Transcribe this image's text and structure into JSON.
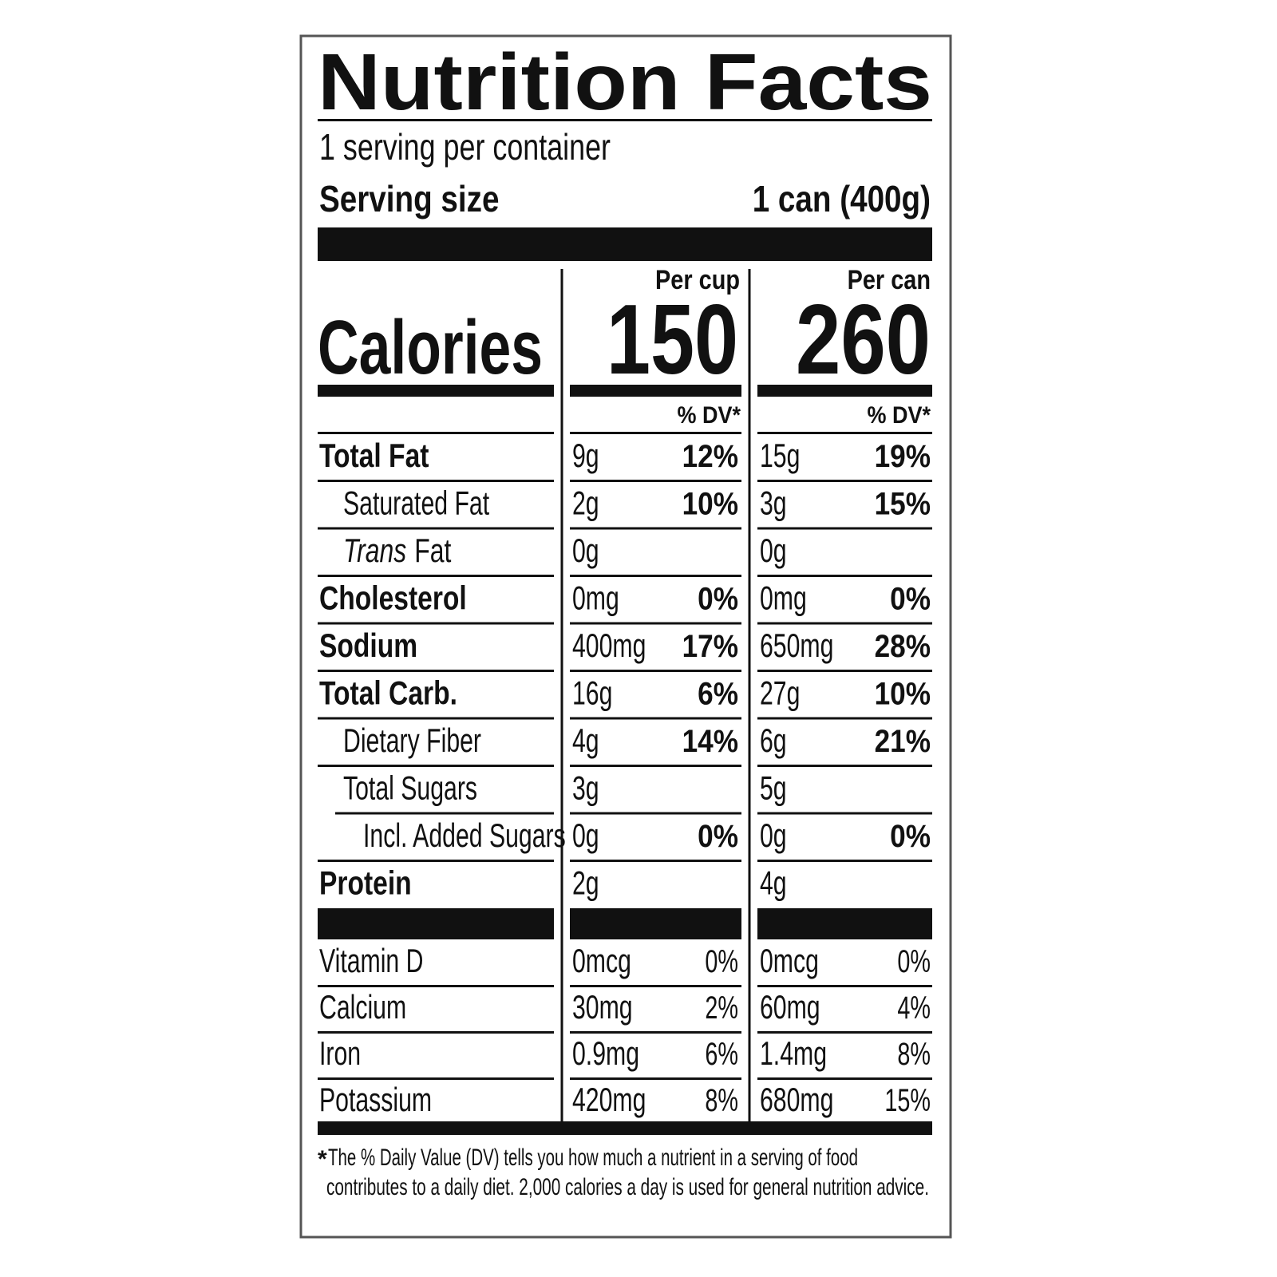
{
  "title": "Nutrition Facts",
  "servings": "1 serving per container",
  "serving_size": {
    "label": "Serving size",
    "value": "1 can (400g)"
  },
  "columns": [
    "Per cup",
    "Per can"
  ],
  "calories": {
    "label": "Calories",
    "per_cup": "150",
    "per_can": "260"
  },
  "dv_header": "% DV*",
  "nutrients": [
    {
      "name": "Total Fat",
      "per_cup": {
        "amount": "9g",
        "dv": "12%"
      },
      "per_can": {
        "amount": "15g",
        "dv": "19%"
      }
    },
    {
      "name": "Saturated Fat",
      "per_cup": {
        "amount": "2g",
        "dv": "10%"
      },
      "per_can": {
        "amount": "3g",
        "dv": "15%"
      }
    },
    {
      "name_italic": "Trans",
      "name": "Fat",
      "per_cup": {
        "amount": "0g"
      },
      "per_can": {
        "amount": "0g"
      }
    },
    {
      "name": "Cholesterol",
      "per_cup": {
        "amount": "0mg",
        "dv": "0%"
      },
      "per_can": {
        "amount": "0mg",
        "dv": "0%"
      }
    },
    {
      "name": "Sodium",
      "per_cup": {
        "amount": "400mg",
        "dv": "17%"
      },
      "per_can": {
        "amount": "650mg",
        "dv": "28%"
      }
    },
    {
      "name": "Total Carb.",
      "per_cup": {
        "amount": "16g",
        "dv": "6%"
      },
      "per_can": {
        "amount": "27g",
        "dv": "10%"
      }
    },
    {
      "name": "Dietary Fiber",
      "per_cup": {
        "amount": "4g",
        "dv": "14%"
      },
      "per_can": {
        "amount": "6g",
        "dv": "21%"
      }
    },
    {
      "name": "Total Sugars",
      "per_cup": {
        "amount": "3g"
      },
      "per_can": {
        "amount": "5g"
      }
    },
    {
      "name": "Incl. Added Sugars",
      "per_cup": {
        "amount": "0g",
        "dv": "0%"
      },
      "per_can": {
        "amount": "0g",
        "dv": "0%"
      }
    },
    {
      "name": "Protein",
      "per_cup": {
        "amount": "2g"
      },
      "per_can": {
        "amount": "4g"
      }
    }
  ],
  "vitamins": [
    {
      "name": "Vitamin D",
      "per_cup": {
        "amount": "0mcg",
        "dv": "0%"
      },
      "per_can": {
        "amount": "0mcg",
        "dv": "0%"
      }
    },
    {
      "name": "Calcium",
      "per_cup": {
        "amount": "30mg",
        "dv": "2%"
      },
      "per_can": {
        "amount": "60mg",
        "dv": "4%"
      }
    },
    {
      "name": "Iron",
      "per_cup": {
        "amount": "0.9mg",
        "dv": "6%"
      },
      "per_can": {
        "amount": "1.4mg",
        "dv": "8%"
      }
    },
    {
      "name": "Potassium",
      "per_cup": {
        "amount": "420mg",
        "dv": "8%"
      },
      "per_can": {
        "amount": "680mg",
        "dv": "15%"
      }
    }
  ],
  "footnote": {
    "marker": "*",
    "lines": [
      "The % Daily Value (DV) tells you how much a nutrient in a serving of food",
      "contributes to a daily diet. 2,000 calories a day is used for general nutrition advice."
    ]
  }
}
